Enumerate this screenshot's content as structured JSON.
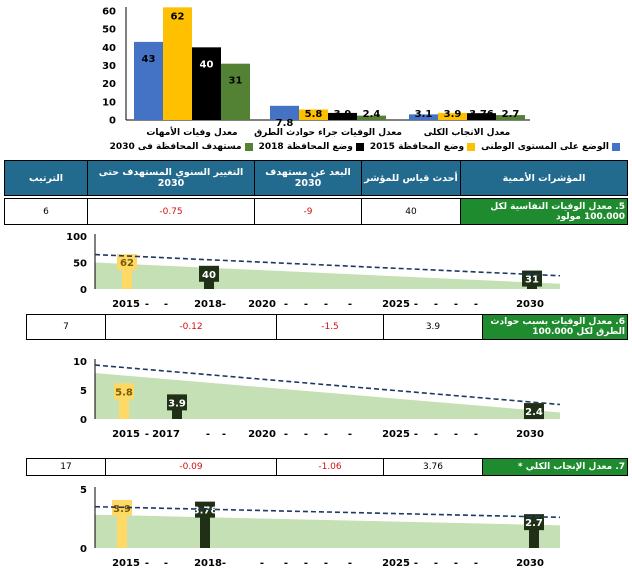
{
  "chart_data": [
    {
      "type": "bar",
      "categories": [
        "معدل وفيات الأمهات",
        "معدل الوفيات جراء حوادث الطرق",
        "معدل الانجاب الكلى"
      ],
      "series": [
        {
          "name": "الوضع على المستوى الوطنى",
          "color": "#4472c4",
          "values": [
            43,
            7.8,
            3.1
          ]
        },
        {
          "name": "وضع المحافظة 2015",
          "color": "#ffc000",
          "values": [
            62,
            5.8,
            3.9
          ]
        },
        {
          "name": "وضع المحافظة 2018",
          "color": "#000000",
          "values": [
            40,
            3.9,
            3.76
          ]
        },
        {
          "name": "مستهدف المحافظة فى 2030",
          "color": "#548235",
          "values": [
            31,
            2.4,
            2.7
          ]
        }
      ],
      "ylim": [
        0,
        60
      ],
      "yticks": [
        0,
        10,
        20,
        30,
        40,
        50,
        60
      ]
    },
    {
      "type": "bar",
      "title": "5. معدل الوفيات النفاسية لكل 100.000 مولود",
      "yticks": [
        0,
        50,
        100
      ],
      "ylim": [
        0,
        100
      ],
      "xticks": [
        "2015",
        "-",
        "-",
        "2018",
        "-",
        "2020",
        "-",
        "-",
        "-",
        "-",
        "2025",
        "-",
        "-",
        "-",
        "-",
        "2030"
      ],
      "bars": [
        {
          "year": "2015",
          "value": 62,
          "color": "#ffd966"
        },
        {
          "year": "2018",
          "value": 40,
          "color": "#203016"
        },
        {
          "year": "2030",
          "value": 31,
          "color": "#203016"
        }
      ],
      "trend": [
        65,
        25
      ]
    },
    {
      "type": "bar",
      "title": "6. معدل الوفيات بسبب حوادث الطرق لكل 100.000",
      "yticks": [
        0,
        5,
        10
      ],
      "ylim": [
        0,
        10
      ],
      "xticks": [
        "2015",
        "-",
        "2017",
        "-",
        "-",
        "2020",
        "-",
        "-",
        "-",
        "-",
        "2025",
        "-",
        "-",
        "-",
        "-",
        "2030"
      ],
      "bars": [
        {
          "year": "2015",
          "value": 5.8,
          "color": "#ffd966"
        },
        {
          "year": "2017",
          "value": 3.9,
          "color": "#203016"
        },
        {
          "year": "2030",
          "value": 2.4,
          "color": "#203016"
        }
      ],
      "trend": [
        9.3,
        2.5
      ]
    },
    {
      "type": "bar",
      "title": "7. معدل الإنجاب الكلي *",
      "yticks": [
        0,
        5
      ],
      "ylim": [
        0,
        5
      ],
      "xticks": [
        "2015",
        "-",
        "-",
        "2018",
        "-",
        "-",
        "-",
        "-",
        "-",
        "-",
        "2025",
        "-",
        "-",
        "-",
        "-",
        "2030"
      ],
      "bars": [
        {
          "year": "2015",
          "value": 3.9,
          "color": "#ffd966"
        },
        {
          "year": "2018",
          "value": 3.76,
          "color": "#203016"
        },
        {
          "year": "2030",
          "value": 2.7,
          "color": "#203016"
        }
      ],
      "trend": [
        3.5,
        2.6
      ]
    }
  ],
  "table": {
    "headers": {
      "indicator": "المؤشرات الأممية",
      "latest": "أحدث قياس للمؤشر",
      "distance": "البعد عن مستهدف 2030",
      "annual_change": "التغيير السنوي المستهدف حتى 2030",
      "rank": "الترتيب"
    },
    "rows": [
      {
        "indicator": "5. معدل الوفيات النفاسية لكل 100.000 مولود",
        "latest": "40",
        "distance": "-9",
        "annual_change": "-0.75",
        "rank": "6"
      },
      {
        "indicator": "6. معدل الوفيات بسبب حوادث الطرق لكل 100.000",
        "latest": "3.9",
        "distance": "-1.5",
        "annual_change": "-0.12",
        "rank": "7"
      },
      {
        "indicator": "7. معدل الإنجاب الكلي *",
        "latest": "3.76",
        "distance": "-1.06",
        "annual_change": "-0.09",
        "rank": "17"
      }
    ]
  }
}
